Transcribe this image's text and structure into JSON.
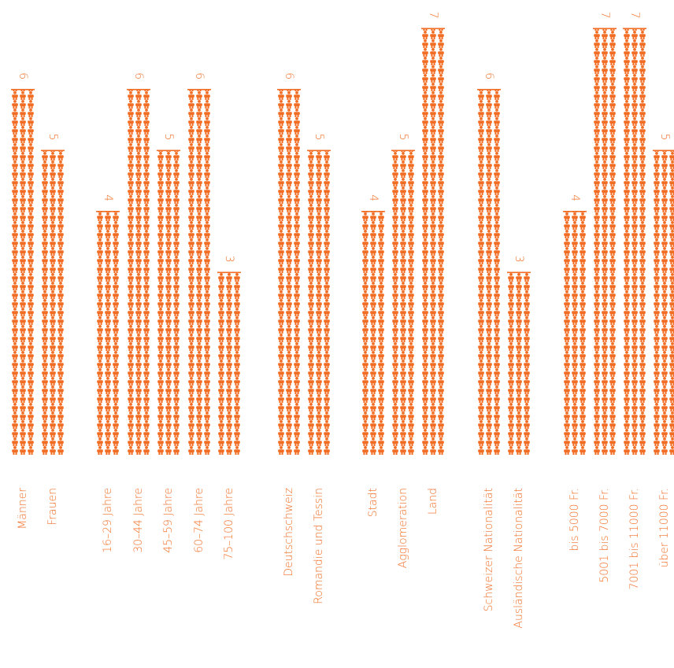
{
  "chart_data": {
    "type": "bar",
    "orientation": "vertical-pictogram",
    "colors": {
      "accent": "#f26d24"
    },
    "icon": "person-icon",
    "groups": [
      {
        "categories": [
          "Männer",
          "Frauen"
        ],
        "values": [
          6,
          5
        ]
      },
      {
        "categories": [
          "16–29 Jahre",
          "30–44 Jahre",
          "45–59 Jahre",
          "60–74 Jahre",
          "75–100 Jahre"
        ],
        "values": [
          4,
          6,
          5,
          6,
          3
        ]
      },
      {
        "categories": [
          "Deutschschweiz",
          "Romandie und Tessin"
        ],
        "values": [
          6,
          5
        ]
      },
      {
        "categories": [
          "Stadt",
          "Agglomeration",
          "Land"
        ],
        "values": [
          4,
          5,
          7
        ]
      },
      {
        "categories": [
          "Schweizer Nationalität",
          "Ausländische Nationalität"
        ],
        "values": [
          6,
          3
        ]
      },
      {
        "categories": [
          "bis 5000 Fr.",
          "5001 bis 7000 Fr.",
          "7001 bis 11000 Fr.",
          "über 11000 Fr."
        ],
        "values": [
          4,
          7,
          7,
          5
        ]
      }
    ],
    "ylim": [
      0,
      7.2
    ]
  }
}
